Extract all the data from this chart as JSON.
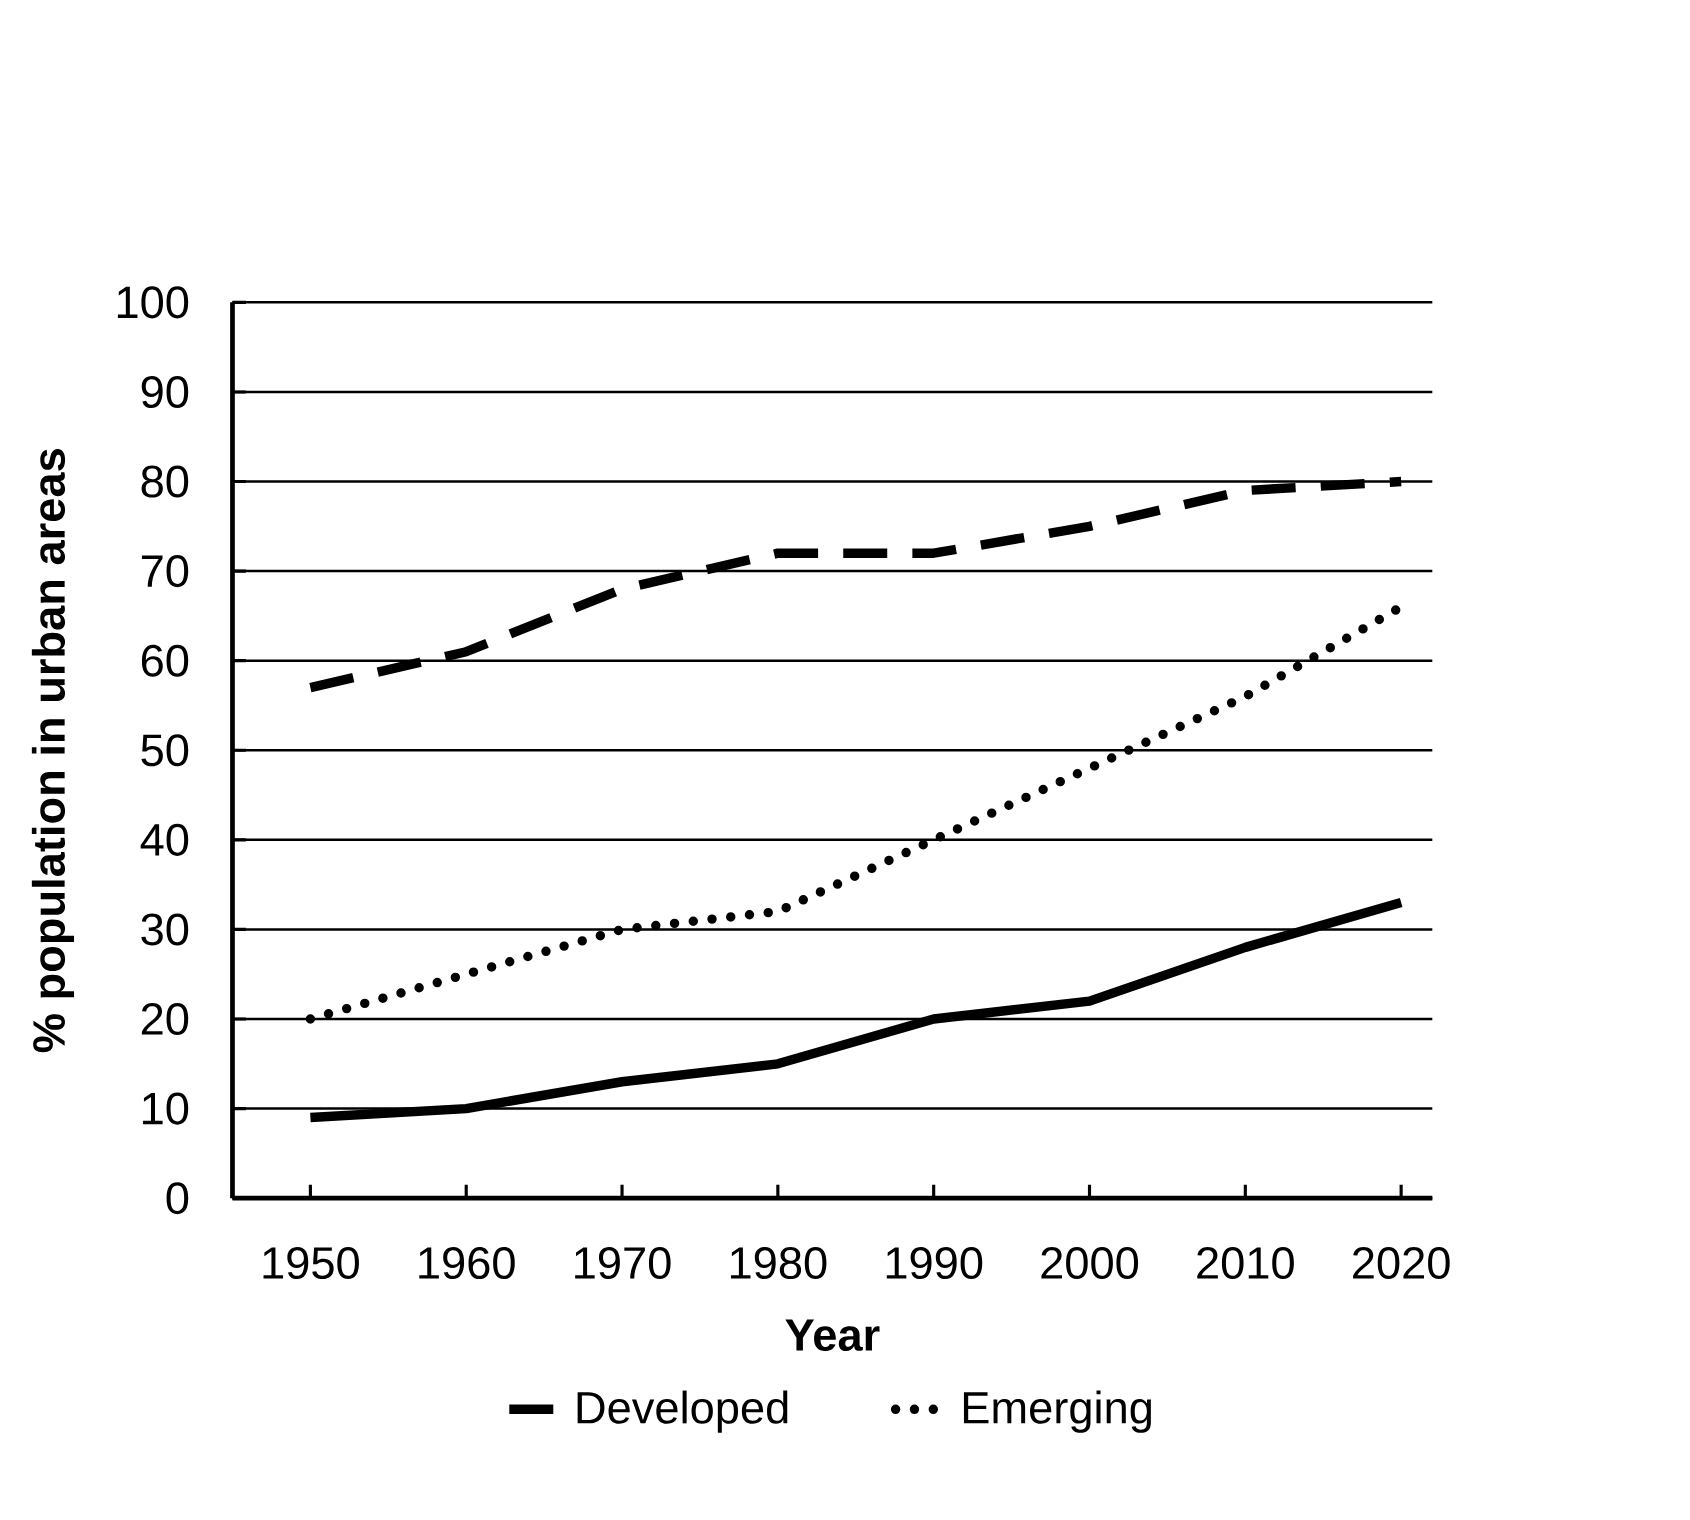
{
  "chart_data": {
    "type": "line",
    "xlabel": "Year",
    "ylabel": "% population in urban areas",
    "x": [
      1950,
      1960,
      1970,
      1980,
      1990,
      2000,
      2010,
      2020
    ],
    "series": [
      {
        "name": "Developed",
        "color": "#000000",
        "line_style": "dashed",
        "values": [
          57,
          61,
          68,
          72,
          72,
          75,
          79,
          80
        ]
      },
      {
        "name": "Emerging",
        "color": "#000000",
        "line_style": "dotted",
        "values": [
          20,
          25,
          30,
          32,
          40,
          48,
          56,
          66
        ]
      },
      {
        "color": "#000000",
        "line_style": "solid",
        "values": [
          9,
          10,
          13,
          15,
          20,
          22,
          28,
          33
        ]
      }
    ],
    "xlim": [
      1945,
      2022
    ],
    "ylim": [
      0,
      100
    ],
    "xticks": [
      1950,
      1960,
      1970,
      1980,
      1990,
      2000,
      2010,
      2020
    ],
    "yticks": [
      0,
      10,
      20,
      30,
      40,
      50,
      60,
      70,
      80,
      90,
      100
    ],
    "grid": "y",
    "legend": "bottom",
    "marker": "none"
  }
}
